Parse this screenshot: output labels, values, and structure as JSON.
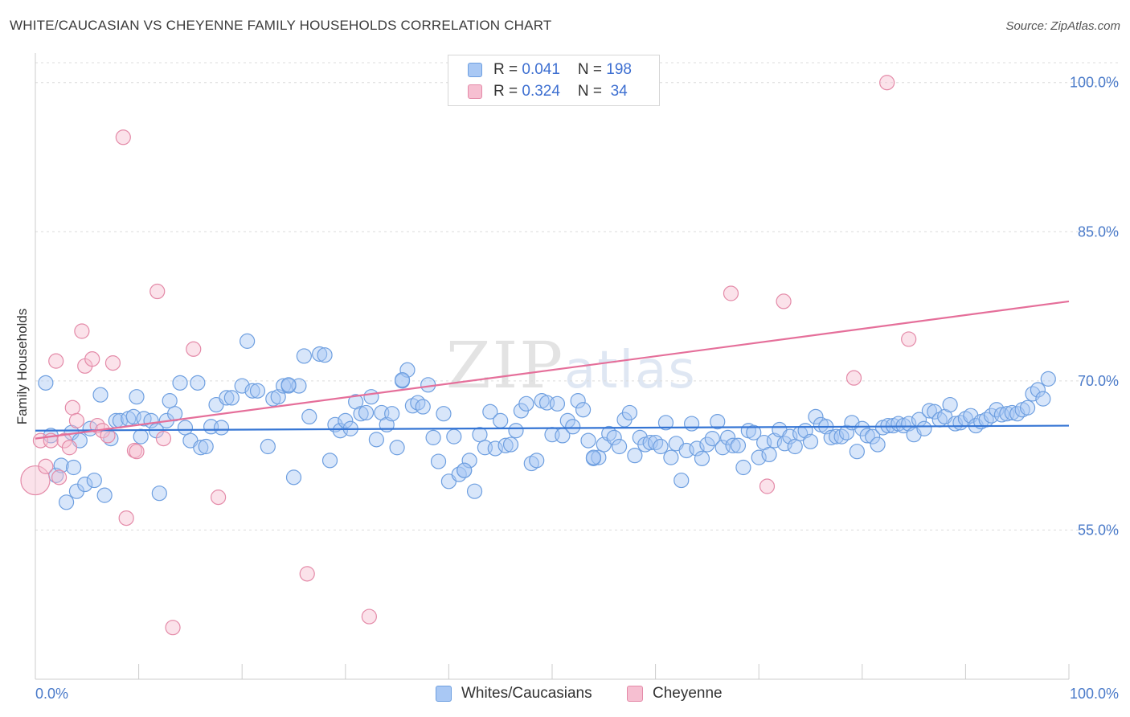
{
  "title": "WHITE/CAUCASIAN VS CHEYENNE FAMILY HOUSEHOLDS CORRELATION CHART",
  "source": "Source: ZipAtlas.com",
  "watermark": {
    "zip": "ZIP",
    "atlas": "atlas"
  },
  "legend": {
    "rows": [
      {
        "r_label": "R = ",
        "r_value": "0.041",
        "n_label": "N = ",
        "n_value": "198",
        "color": "#a9c8f4",
        "border": "#6e9fe0"
      },
      {
        "r_label": "R = ",
        "r_value": "0.324",
        "n_label": "N = ",
        "n_value": " 34",
        "color": "#f6bfd1",
        "border": "#e48aa8"
      }
    ]
  },
  "bottom_legend": {
    "series1": "Whites/Caucasians",
    "series2": "Cheyenne"
  },
  "chart_data": {
    "type": "scatter",
    "title": "WHITE/CAUCASIAN VS CHEYENNE FAMILY HOUSEHOLDS CORRELATION CHART",
    "xlabel": "",
    "ylabel": "Family Households",
    "xlim": [
      0,
      100
    ],
    "ylim": [
      40,
      102
    ],
    "x_tick_labels": [
      "0.0%",
      "100.0%"
    ],
    "y_ticks": [
      55,
      70,
      85,
      100
    ],
    "y_tick_labels": [
      "55.0%",
      "70.0%",
      "85.0%",
      "100.0%"
    ],
    "grid": true,
    "series": [
      {
        "name": "Whites/Caucasians",
        "color": "#a9c8f4",
        "stroke": "#6e9fe0",
        "line_color": "#3575d4",
        "trend": {
          "x": [
            0,
            100
          ],
          "y": [
            65.0,
            65.5
          ]
        },
        "points": [
          [
            1,
            69.8
          ],
          [
            1.5,
            64.5
          ],
          [
            2,
            60.5
          ],
          [
            2.5,
            61.5
          ],
          [
            3,
            57.8
          ],
          [
            3.5,
            64.8
          ],
          [
            3.7,
            61.3
          ],
          [
            4,
            58.9
          ],
          [
            4.3,
            64
          ],
          [
            4.8,
            59.6
          ],
          [
            5.3,
            65.2
          ],
          [
            5.7,
            60
          ],
          [
            6.3,
            68.6
          ],
          [
            6.7,
            58.5
          ],
          [
            7.3,
            64.2
          ],
          [
            7.8,
            66
          ],
          [
            8.2,
            66
          ],
          [
            9,
            66.2
          ],
          [
            9.5,
            66.4
          ],
          [
            9.8,
            68.4
          ],
          [
            10.2,
            64.4
          ],
          [
            10.5,
            66.2
          ],
          [
            11.2,
            66
          ],
          [
            11.7,
            65
          ],
          [
            12,
            58.7
          ],
          [
            12.7,
            66
          ],
          [
            13,
            68
          ],
          [
            13.5,
            66.7
          ],
          [
            14,
            69.8
          ],
          [
            14.5,
            65.3
          ],
          [
            15,
            64
          ],
          [
            15.7,
            69.8
          ],
          [
            16,
            63.3
          ],
          [
            16.5,
            63.4
          ],
          [
            17,
            65.4
          ],
          [
            17.5,
            67.6
          ],
          [
            18,
            65.3
          ],
          [
            18.5,
            68.3
          ],
          [
            19,
            68.3
          ],
          [
            20,
            69.5
          ],
          [
            20.5,
            74
          ],
          [
            21,
            69
          ],
          [
            21.5,
            69
          ],
          [
            22.5,
            63.4
          ],
          [
            23,
            68.2
          ],
          [
            23.5,
            68.4
          ],
          [
            24,
            69.5
          ],
          [
            24.5,
            69.5
          ],
          [
            25,
            60.3
          ],
          [
            25.5,
            69.5
          ],
          [
            26,
            72.5
          ],
          [
            26.5,
            66.4
          ],
          [
            27.5,
            72.7
          ],
          [
            28,
            72.6
          ],
          [
            28.5,
            62
          ],
          [
            29,
            65.6
          ],
          [
            29.5,
            65
          ],
          [
            30,
            66
          ],
          [
            30.5,
            65.2
          ],
          [
            31,
            67.9
          ],
          [
            31.5,
            66.7
          ],
          [
            32,
            66.8
          ],
          [
            32.5,
            68.4
          ],
          [
            33,
            64.1
          ],
          [
            33.5,
            66.8
          ],
          [
            34,
            65.6
          ],
          [
            34.5,
            66.7
          ],
          [
            35,
            63.3
          ],
          [
            35.5,
            70
          ],
          [
            36,
            71.1
          ],
          [
            36.5,
            67.5
          ],
          [
            37,
            67.8
          ],
          [
            37.5,
            67.4
          ],
          [
            38,
            69.6
          ],
          [
            38.5,
            64.3
          ],
          [
            39,
            61.9
          ],
          [
            39.5,
            66.7
          ],
          [
            40,
            59.9
          ],
          [
            40.5,
            64.4
          ],
          [
            41,
            60.6
          ],
          [
            41.5,
            61
          ],
          [
            42,
            62
          ],
          [
            42.5,
            58.9
          ],
          [
            43,
            64.6
          ],
          [
            43.5,
            63.3
          ],
          [
            44,
            66.9
          ],
          [
            44.5,
            63.2
          ],
          [
            45,
            66
          ],
          [
            45.5,
            63.5
          ],
          [
            46,
            63.6
          ],
          [
            46.5,
            65
          ],
          [
            47,
            67
          ],
          [
            47.5,
            67.7
          ],
          [
            48,
            61.7
          ],
          [
            48.5,
            62
          ],
          [
            49,
            68
          ],
          [
            49.5,
            67.8
          ],
          [
            50,
            64.6
          ],
          [
            50.5,
            67.7
          ],
          [
            51,
            64.5
          ],
          [
            51.5,
            66
          ],
          [
            52,
            65.4
          ],
          [
            52.5,
            68
          ],
          [
            53,
            67.1
          ],
          [
            53.5,
            64
          ],
          [
            54,
            62.2
          ],
          [
            54.5,
            62.3
          ],
          [
            55,
            63.6
          ],
          [
            55.5,
            64.7
          ],
          [
            56,
            64.3
          ],
          [
            56.5,
            63.4
          ],
          [
            57,
            66.1
          ],
          [
            57.5,
            66.8
          ],
          [
            58,
            62.5
          ],
          [
            58.5,
            64.3
          ],
          [
            59,
            63.6
          ],
          [
            59.5,
            63.8
          ],
          [
            60,
            63.8
          ],
          [
            60.5,
            63.4
          ],
          [
            61,
            65.8
          ],
          [
            61.5,
            62.3
          ],
          [
            62,
            63.7
          ],
          [
            62.5,
            60
          ],
          [
            63,
            63
          ],
          [
            63.5,
            65.7
          ],
          [
            64,
            63.2
          ],
          [
            64.5,
            62.2
          ],
          [
            65,
            63.6
          ],
          [
            65.5,
            64.2
          ],
          [
            66,
            65.9
          ],
          [
            66.5,
            63.3
          ],
          [
            67,
            64.3
          ],
          [
            67.5,
            63.5
          ],
          [
            68,
            63.5
          ],
          [
            68.5,
            61.3
          ],
          [
            69,
            65
          ],
          [
            69.5,
            64.8
          ],
          [
            70,
            62.3
          ],
          [
            70.5,
            63.8
          ],
          [
            71,
            62.6
          ],
          [
            71.5,
            64
          ],
          [
            72,
            65.1
          ],
          [
            72.5,
            63.7
          ],
          [
            73,
            64.4
          ],
          [
            73.5,
            63.4
          ],
          [
            74,
            64.7
          ],
          [
            74.5,
            65
          ],
          [
            75,
            63.9
          ],
          [
            75.5,
            66.4
          ],
          [
            76,
            65.6
          ],
          [
            76.5,
            65.4
          ],
          [
            77,
            64.3
          ],
          [
            77.5,
            64.4
          ],
          [
            78,
            64.4
          ],
          [
            78.5,
            64.8
          ],
          [
            79,
            65.8
          ],
          [
            79.5,
            62.9
          ],
          [
            80,
            65.2
          ],
          [
            80.5,
            64.5
          ],
          [
            81,
            64.4
          ],
          [
            81.5,
            63.6
          ],
          [
            82,
            65.3
          ],
          [
            82.5,
            65.5
          ],
          [
            83,
            65.5
          ],
          [
            83.5,
            65.7
          ],
          [
            84,
            65.5
          ],
          [
            84.5,
            65.7
          ],
          [
            85,
            64.6
          ],
          [
            85.5,
            66.1
          ],
          [
            86,
            65.2
          ],
          [
            86.5,
            67
          ],
          [
            87,
            66.9
          ],
          [
            87.5,
            66.1
          ],
          [
            88,
            66.4
          ],
          [
            88.5,
            67.6
          ],
          [
            89,
            65.7
          ],
          [
            89.5,
            65.8
          ],
          [
            90,
            66.2
          ],
          [
            90.5,
            66.5
          ],
          [
            91,
            65.5
          ],
          [
            91.5,
            65.9
          ],
          [
            92,
            66.1
          ],
          [
            92.5,
            66.5
          ],
          [
            93,
            67.1
          ],
          [
            93.5,
            66.6
          ],
          [
            94,
            66.7
          ],
          [
            94.5,
            66.8
          ],
          [
            95,
            66.7
          ],
          [
            95.5,
            67.1
          ],
          [
            96,
            67.3
          ],
          [
            96.5,
            68.7
          ],
          [
            97,
            69.1
          ],
          [
            97.5,
            68.2
          ],
          [
            98,
            70.2
          ],
          [
            41.5,
            61
          ],
          [
            54,
            62.3
          ],
          [
            24.5,
            69.6
          ],
          [
            35.5,
            70.1
          ]
        ]
      },
      {
        "name": "Cheyenne",
        "color": "#f6bfd1",
        "stroke": "#e48aa8",
        "line_color": "#e56f9a",
        "trend": {
          "x": [
            0,
            100
          ],
          "y": [
            64.2,
            78.0
          ]
        },
        "points": [
          [
            0,
            60
          ],
          [
            0.5,
            64
          ],
          [
            1,
            61.4
          ],
          [
            1.5,
            64
          ],
          [
            2,
            72
          ],
          [
            2.3,
            60.3
          ],
          [
            2.8,
            64
          ],
          [
            3.3,
            63.3
          ],
          [
            3.6,
            67.3
          ],
          [
            4,
            66
          ],
          [
            4.5,
            75
          ],
          [
            4.8,
            71.5
          ],
          [
            5.5,
            72.2
          ],
          [
            6,
            65.5
          ],
          [
            6.5,
            65
          ],
          [
            7,
            64.5
          ],
          [
            7.5,
            71.8
          ],
          [
            8.5,
            94.5
          ],
          [
            8.8,
            56.2
          ],
          [
            9.6,
            63
          ],
          [
            9.8,
            62.9
          ],
          [
            11.8,
            79
          ],
          [
            12.4,
            64.2
          ],
          [
            13.3,
            45.2
          ],
          [
            15.3,
            73.2
          ],
          [
            17.7,
            58.3
          ],
          [
            26.3,
            50.6
          ],
          [
            32.3,
            46.3
          ],
          [
            67.3,
            78.8
          ],
          [
            72.4,
            78
          ],
          [
            70.8,
            59.4
          ],
          [
            79.2,
            70.3
          ],
          [
            84.5,
            74.2
          ],
          [
            82.4,
            100
          ]
        ]
      }
    ]
  }
}
